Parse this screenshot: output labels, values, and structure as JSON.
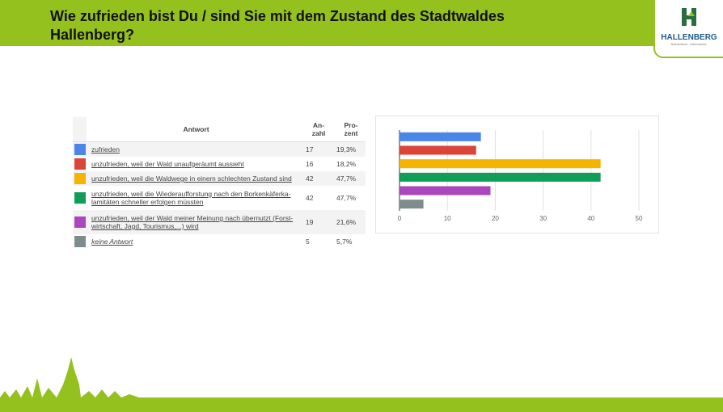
{
  "header": {
    "title": [
      "Wie zufrieden bist Du / sind Sie mit dem Zustand des Stadtwaldes",
      "Hallenberg?"
    ]
  },
  "logo": {
    "name": "HALLENBERG",
    "tagline": "Authentisch. Lebenswert."
  },
  "table": {
    "columns": [
      [
        "Antwort"
      ],
      [
        "An-",
        "zahl"
      ],
      [
        "Pro-",
        "zent"
      ]
    ],
    "rows": [
      {
        "color": "#4a86e8",
        "label": [
          "zufrieden"
        ],
        "count": "17",
        "percent": "19,3%"
      },
      {
        "color": "#db4437",
        "label": [
          "unzufrieden, weil der Wald unaufgeräumt aussieht"
        ],
        "count": "16",
        "percent": "18,2%"
      },
      {
        "color": "#f4b400",
        "label": [
          "unzufrieden, weil die Waldwege in einem schlechten Zustand sind"
        ],
        "count": "42",
        "percent": "47,7%"
      },
      {
        "color": "#0f9d58",
        "label": [
          "unzufrieden, weil die Wiederaufforstung nach den Borkenkäferka-",
          "lamitäten schneller erfolgen müssten"
        ],
        "count": "42",
        "percent": "47,7%"
      },
      {
        "color": "#ab47bc",
        "label": [
          "unzufrieden, weil der Wald meiner Meinung nach übernutzt (Forst-",
          "wirtschaft, Jagd, Tourismus,...) wird"
        ],
        "count": "19",
        "percent": "21,6%"
      },
      {
        "color": "#7f8c8d",
        "label": [
          "keine Antwort"
        ],
        "count": "5",
        "percent": "5,7%"
      }
    ]
  },
  "chart_data": {
    "type": "hbar",
    "values": [
      17,
      16,
      42,
      42,
      19,
      5
    ],
    "colors": [
      "#4a86e8",
      "#db4437",
      "#f4b400",
      "#0f9d58",
      "#ab47bc",
      "#7f8c8d"
    ],
    "xlim": [
      0,
      50
    ],
    "xticks": [
      0,
      10,
      20,
      30,
      40,
      50
    ],
    "grid": true
  }
}
